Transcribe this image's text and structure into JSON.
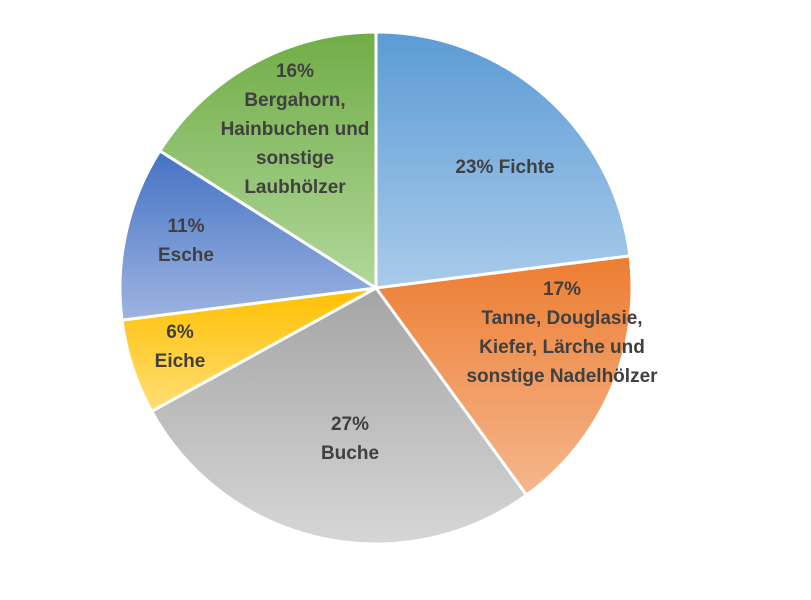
{
  "chart_data": {
    "type": "pie",
    "title": "",
    "start_angle_deg": 0,
    "direction": "clockwise",
    "slices": [
      {
        "label": "Fichte",
        "value": 23,
        "label_lines": [
          "23% Fichte"
        ],
        "color_from": "#5B9BD5",
        "color_to": "#A9CBEA"
      },
      {
        "label": "Tanne, Douglasie, Kiefer, Lärche und sonstige Nadelhölzer",
        "value": 17,
        "label_lines": [
          "17%",
          "Tanne, Douglasie,",
          "Kiefer, Lärche und",
          "sonstige Nadelhölzer"
        ],
        "color_from": "#ED7D31",
        "color_to": "#F5B78E"
      },
      {
        "label": "Buche",
        "value": 27,
        "label_lines": [
          "27%",
          "Buche"
        ],
        "color_from": "#A5A5A5",
        "color_to": "#D6D6D6"
      },
      {
        "label": "Eiche",
        "value": 6,
        "label_lines": [
          "6%",
          "Eiche"
        ],
        "color_from": "#FFC000",
        "color_to": "#FFDE75"
      },
      {
        "label": "Esche",
        "value": 11,
        "label_lines": [
          "11%",
          "Esche"
        ],
        "color_from": "#4472C4",
        "color_to": "#9EB4E1"
      },
      {
        "label": "Bergahorn, Hainbuchen und sonstige Laubhölzer",
        "value": 16,
        "label_lines": [
          "16%",
          "Bergahorn,",
          "Hainbuchen und",
          "sonstige",
          "Laubhölzer"
        ],
        "color_from": "#70AD47",
        "color_to": "#B1D79A"
      }
    ]
  }
}
